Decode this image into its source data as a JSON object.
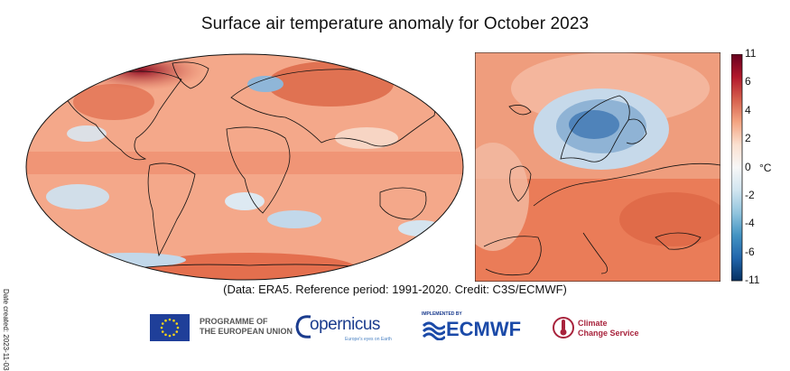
{
  "title": "Surface air temperature anomaly for October 2023",
  "date_created": "Date created: 2023-11-03",
  "credit": "(Data: ERA5.  Reference period: 1991-2020.  Credit: C3S/ECMWF)",
  "colorbar": {
    "unit": "°C",
    "ticks": [
      "11",
      "6",
      "4",
      "2",
      "0",
      "-2",
      "-4",
      "-6",
      "-11"
    ],
    "tick_values": [
      11,
      6,
      4,
      2,
      0,
      -2,
      -4,
      -6,
      -11
    ],
    "colors": [
      "#67001f",
      "#b2182b",
      "#d6604d",
      "#f4a582",
      "#fbe0d0",
      "#f7f7f7",
      "#d1e5f0",
      "#92c5de",
      "#4393c3",
      "#2166ac",
      "#053061"
    ]
  },
  "maps": {
    "global": {
      "base_color": "#f4a88a",
      "projection": "robinson"
    },
    "europe": {
      "base_color": "#ef9d7d"
    }
  },
  "logos": {
    "eu": {
      "line1": "PROGRAMME OF",
      "line2": "THE EUROPEAN UNION",
      "icon": "eu-flag-icon"
    },
    "copernicus": {
      "word": "opernicus",
      "sub": "Europe's eyes on Earth",
      "icon": "copernicus-c-icon"
    },
    "ecmwf": {
      "small": "IMPLEMENTED BY",
      "word": "ECMWF",
      "icon": "ecmwf-waves-icon"
    },
    "c3s": {
      "line1": "Climate",
      "line2": "Change Service",
      "icon": "thermometer-icon"
    }
  }
}
